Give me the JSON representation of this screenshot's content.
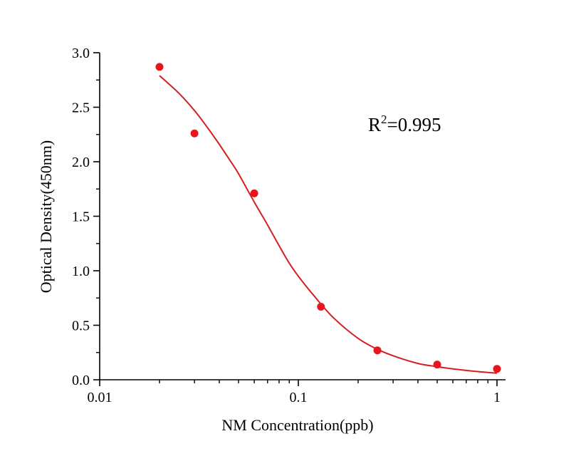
{
  "chart_data": {
    "type": "scatter",
    "title": "",
    "xlabel": "NM Concentration(ppb)",
    "ylabel": "Optical Density(450nm)",
    "xscale": "log",
    "xlim": [
      0.01,
      1
    ],
    "ylim": [
      0.0,
      3.0
    ],
    "x_ticks": [
      0.01,
      0.1,
      1
    ],
    "x_tick_labels": [
      "0.01",
      "0.1",
      "1"
    ],
    "y_ticks": [
      0.0,
      0.5,
      1.0,
      1.5,
      2.0,
      2.5,
      3.0
    ],
    "y_tick_labels": [
      "0.0",
      "0.5",
      "1.0",
      "1.5",
      "2.0",
      "2.5",
      "3.0"
    ],
    "grid": false,
    "annotation": {
      "base": "R",
      "sup": "2",
      "rest": "=0.995"
    },
    "series": [
      {
        "type": "scatter",
        "color": "#e8161b",
        "points": [
          {
            "x": 0.02,
            "y": 2.87
          },
          {
            "x": 0.03,
            "y": 2.26
          },
          {
            "x": 0.06,
            "y": 1.71
          },
          {
            "x": 0.13,
            "y": 0.67
          },
          {
            "x": 0.25,
            "y": 0.27
          },
          {
            "x": 0.5,
            "y": 0.14
          },
          {
            "x": 1.0,
            "y": 0.1
          }
        ]
      },
      {
        "type": "line",
        "color": "#d62020",
        "fit": "4PL",
        "points": [
          {
            "x": 0.02,
            "y": 2.79
          },
          {
            "x": 0.025,
            "y": 2.63
          },
          {
            "x": 0.03,
            "y": 2.47
          },
          {
            "x": 0.035,
            "y": 2.31
          },
          {
            "x": 0.04,
            "y": 2.16
          },
          {
            "x": 0.045,
            "y": 2.02
          },
          {
            "x": 0.05,
            "y": 1.89
          },
          {
            "x": 0.06,
            "y": 1.63
          },
          {
            "x": 0.07,
            "y": 1.42
          },
          {
            "x": 0.08,
            "y": 1.23
          },
          {
            "x": 0.09,
            "y": 1.07
          },
          {
            "x": 0.1,
            "y": 0.95
          },
          {
            "x": 0.12,
            "y": 0.77
          },
          {
            "x": 0.15,
            "y": 0.57
          },
          {
            "x": 0.2,
            "y": 0.38
          },
          {
            "x": 0.25,
            "y": 0.28
          },
          {
            "x": 0.3,
            "y": 0.22
          },
          {
            "x": 0.4,
            "y": 0.15
          },
          {
            "x": 0.5,
            "y": 0.12
          },
          {
            "x": 0.6,
            "y": 0.1
          },
          {
            "x": 0.8,
            "y": 0.075
          },
          {
            "x": 1.0,
            "y": 0.06
          }
        ]
      }
    ]
  }
}
